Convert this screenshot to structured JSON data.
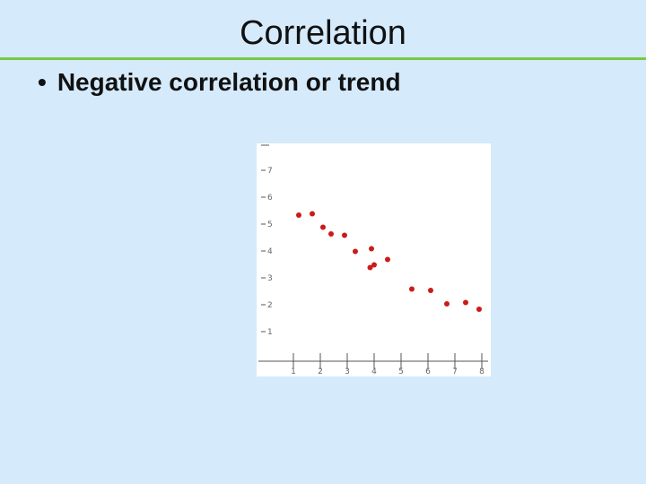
{
  "slide": {
    "title": "Correlation",
    "bullet_marker": "•",
    "bullet_text": "Negative correlation or trend"
  },
  "colors": {
    "background": "#d5eafb",
    "title_rule": "#7ac943",
    "point": "#cc1a1a",
    "axis": "#555555"
  },
  "chart_data": {
    "type": "scatter",
    "title": "",
    "xlabel": "",
    "ylabel": "",
    "xlim": [
      0,
      8
    ],
    "ylim": [
      0,
      8
    ],
    "x_ticks": [
      "1",
      "2",
      "3",
      "4",
      "5",
      "6",
      "7",
      "8"
    ],
    "y_ticks": [
      "1",
      "2",
      "3",
      "4",
      "5",
      "6",
      "7"
    ],
    "grid": false,
    "legend": "none",
    "series": [
      {
        "x": [
          1.2,
          1.7,
          2.1,
          2.4,
          2.9,
          3.3,
          3.9,
          3.85,
          4.0,
          4.5,
          5.4,
          6.1,
          6.7,
          7.4,
          7.9
        ],
        "y": [
          5.4,
          5.45,
          4.95,
          4.7,
          4.65,
          4.05,
          4.15,
          3.45,
          3.55,
          3.75,
          2.65,
          2.6,
          2.1,
          2.15,
          1.9
        ]
      }
    ]
  }
}
